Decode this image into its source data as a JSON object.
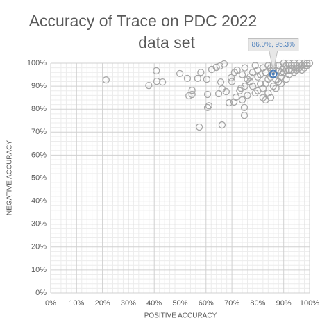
{
  "chart_data": {
    "type": "scatter",
    "title": [
      "Accuracy of Trace on PDC 2022",
      "data set"
    ],
    "x_label": "POSITIVE ACCURACY",
    "y_label": "NEGATIVE ACCURACY",
    "xlim": [
      0,
      100
    ],
    "ylim": [
      0,
      100
    ],
    "xticks": [
      {
        "value": 0,
        "label": "0%"
      },
      {
        "value": 10,
        "label": "10%"
      },
      {
        "value": 20,
        "label": "20%"
      },
      {
        "value": 30,
        "label": "30%"
      },
      {
        "value": 40,
        "label": "40%"
      },
      {
        "value": 50,
        "label": "50%"
      },
      {
        "value": 60,
        "label": "60%"
      },
      {
        "value": 70,
        "label": "70%"
      },
      {
        "value": 80,
        "label": "80%"
      },
      {
        "value": 90,
        "label": "90%"
      },
      {
        "value": 100,
        "label": "100%"
      }
    ],
    "yticks": [
      {
        "value": 0,
        "label": "0%"
      },
      {
        "value": 10,
        "label": "10%"
      },
      {
        "value": 20,
        "label": "20%"
      },
      {
        "value": 30,
        "label": "30%"
      },
      {
        "value": 40,
        "label": "40%"
      },
      {
        "value": 50,
        "label": "50%"
      },
      {
        "value": 60,
        "label": "60%"
      },
      {
        "value": 70,
        "label": "70%"
      },
      {
        "value": 80,
        "label": "80%"
      },
      {
        "value": 90,
        "label": "90%"
      },
      {
        "value": 100,
        "label": "100%"
      }
    ],
    "grid": true,
    "minor_grid": true,
    "series": [
      {
        "color": "#a6a6a6",
        "x": [
          21.4,
          40.8,
          37.9,
          41.0,
          43.2,
          49.9,
          52.8,
          53.4,
          54.6,
          54.6,
          56.8,
          58,
          60.6,
          57.4,
          66.2,
          60.6,
          61.1,
          60.3,
          62.2,
          64,
          65.4,
          67,
          65.7,
          66.2,
          64.9,
          67.8,
          68.9,
          70.8,
          71.6,
          74.8,
          74.8,
          73.5,
          69.7,
          72,
          74,
          76,
          75,
          78,
          80,
          79,
          81,
          82,
          83,
          84,
          85,
          86,
          87,
          88,
          89,
          90,
          91,
          92,
          93,
          94,
          95,
          96,
          97,
          98,
          99,
          100,
          88,
          86,
          84,
          82,
          80,
          78,
          76,
          74,
          77,
          79,
          81,
          83,
          85,
          87,
          89,
          90,
          91,
          92,
          93,
          94,
          95,
          96,
          97,
          98,
          99,
          70,
          71,
          73,
          75,
          77,
          80,
          82,
          84,
          86,
          88,
          90,
          92,
          94,
          85,
          83,
          87,
          89,
          91
        ],
        "y": [
          92.7,
          96.7,
          90.3,
          92.1,
          91.8,
          95.5,
          93.4,
          85.8,
          86.4,
          88.2,
          93.4,
          96,
          86.4,
          72.2,
          73.1,
          80.7,
          81.5,
          93,
          97.3,
          98.2,
          98.8,
          99.7,
          91.8,
          88.8,
          86.7,
          87.6,
          82.8,
          83.1,
          85.2,
          80.7,
          77.3,
          89.1,
          93.7,
          97,
          95,
          93,
          98,
          96,
          94,
          99,
          91,
          89,
          96,
          93,
          98,
          97,
          95,
          99,
          96,
          98,
          99,
          97,
          99,
          98,
          99,
          100,
          99,
          100,
          99,
          100,
          92,
          90,
          87,
          85,
          88,
          90,
          86,
          84,
          92,
          87,
          95,
          91,
          94,
          89,
          94,
          96,
          97,
          95,
          97,
          96,
          97,
          98,
          97,
          98,
          100,
          92,
          96,
          88,
          90,
          94,
          97,
          98,
          99,
          99,
          97,
          100,
          100,
          100,
          85,
          84,
          93,
          91,
          93
        ]
      }
    ],
    "highlight": {
      "x": 86.0,
      "y": 95.3,
      "label": "86.0%, 95.3%",
      "color": "#4a7ebb"
    }
  }
}
